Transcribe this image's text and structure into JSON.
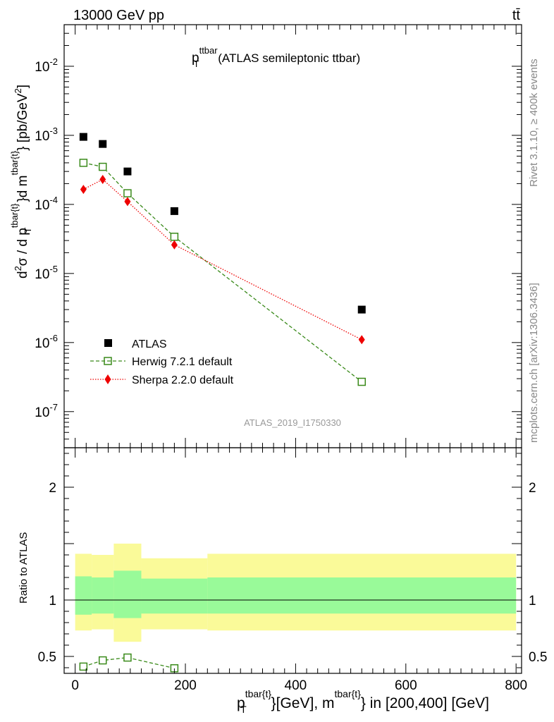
{
  "header": {
    "energy": "13000 GeV pp",
    "process": "tt̄",
    "rivet": "Rivet 3.1.10, ≥ 400k events",
    "site": "mcplots.cern.ch [arXiv:1306.3436]",
    "analysis_id": "ATLAS_2019_I1750330"
  },
  "title": {
    "p": "p",
    "sup": "ttbar",
    "sub": "T",
    "rest": " (ATLAS semileptonic ttbar)"
  },
  "axes": {
    "ylabel_main": "d²σ / d p_T^{tbar{t}}d m^{tbar{t}} [pb/GeV²]",
    "ylabel_ratio": "Ratio to ATLAS",
    "xlabel": "p_T^{tbar{t}}[GeV], m^{tbar{t}} in [200,400] [GeV]",
    "xlabel_parts": {
      "p": "p",
      "sup1": "tbar{t}",
      "sub1": "T",
      "mid": "}[GeV], m",
      "sup2": "tbar{t}",
      "end": "} in [200,400] [GeV]"
    }
  },
  "legend": [
    {
      "label": "ATLAS"
    },
    {
      "label": "Herwig 7.2.1 default"
    },
    {
      "label": "Sherpa 2.2.0 default"
    }
  ],
  "colors": {
    "atlas": "#000000",
    "herwig": "#3a8a1a",
    "sherpa": "#ee0000",
    "band_inner": "#99fa99",
    "band_outer": "#fafa99",
    "side_text": "#888888"
  },
  "chart_data": [
    {
      "type": "scatter",
      "panel": "main",
      "yscale": "log",
      "xlim": [
        -20,
        810
      ],
      "ylim": [
        3e-08,
        0.04
      ],
      "xticks": [
        0,
        200,
        400,
        600,
        800
      ],
      "yticks": [
        {
          "value": 1e-07,
          "mant": "10",
          "exp": "-7"
        },
        {
          "value": 1e-06,
          "mant": "10",
          "exp": "-6"
        },
        {
          "value": 1e-05,
          "mant": "10",
          "exp": "-5"
        },
        {
          "value": 0.0001,
          "mant": "10",
          "exp": "-4"
        },
        {
          "value": 0.001,
          "mant": "10",
          "exp": "-3"
        },
        {
          "value": 0.01,
          "mant": "10",
          "exp": "-2"
        }
      ],
      "series": [
        {
          "name": "ATLAS",
          "style": "data",
          "x": [
            15,
            50,
            95,
            180,
            520
          ],
          "y": [
            0.00095,
            0.00075,
            0.0003,
            8e-05,
            3e-06
          ]
        },
        {
          "name": "Herwig 7.2.1 default",
          "style": "herwig",
          "x": [
            15,
            50,
            95,
            180,
            520
          ],
          "y": [
            0.0004,
            0.00035,
            0.000145,
            3.4e-05,
            2.7e-07
          ]
        },
        {
          "name": "Sherpa 2.2.0 default",
          "style": "sherpa",
          "x": [
            15,
            50,
            95,
            180,
            520
          ],
          "y": [
            0.000165,
            0.00023,
            0.00011,
            2.6e-05,
            1.1e-06
          ]
        }
      ]
    },
    {
      "type": "line",
      "panel": "ratio",
      "xlim": [
        -20,
        810
      ],
      "ylim": [
        0.35,
        2.35
      ],
      "yticks": [
        0.5,
        1,
        2
      ],
      "yticklabels": [
        "0.5",
        "1",
        "2"
      ],
      "bands": [
        {
          "x0": 0,
          "x1": 30,
          "inner": [
            0.87,
            1.21
          ],
          "outer": [
            0.73,
            1.41
          ]
        },
        {
          "x0": 30,
          "x1": 70,
          "inner": [
            0.88,
            1.2
          ],
          "outer": [
            0.74,
            1.4
          ]
        },
        {
          "x0": 70,
          "x1": 120,
          "inner": [
            0.84,
            1.26
          ],
          "outer": [
            0.63,
            1.5
          ]
        },
        {
          "x0": 120,
          "x1": 240,
          "inner": [
            0.88,
            1.19
          ],
          "outer": [
            0.74,
            1.37
          ]
        },
        {
          "x0": 240,
          "x1": 800,
          "inner": [
            0.88,
            1.2
          ],
          "outer": [
            0.73,
            1.41
          ]
        }
      ],
      "series": [
        {
          "name": "Herwig 7.2.1 default",
          "style": "herwig",
          "x": [
            15,
            50,
            95,
            180
          ],
          "y": [
            0.41,
            0.465,
            0.49,
            0.395
          ]
        }
      ]
    }
  ]
}
